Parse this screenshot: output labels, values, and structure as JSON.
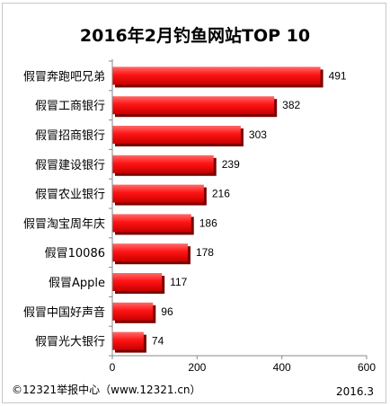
{
  "chart_data": {
    "type": "bar",
    "orientation": "horizontal",
    "title": "2016年2月钓鱼网站TOP 10",
    "categories": [
      "假冒奔跑吧兄弟",
      "假冒工商银行",
      "假冒招商银行",
      "假冒建设银行",
      "假冒农业银行",
      "假冒淘宝周年庆",
      "假冒10086",
      "假冒Apple",
      "假冒中国好声音",
      "假冒光大银行"
    ],
    "values": [
      491,
      382,
      303,
      239,
      216,
      186,
      178,
      117,
      96,
      74
    ],
    "xlabel": "",
    "ylabel": "",
    "xlim": [
      0,
      600
    ],
    "xticks": [
      "0",
      "200",
      "400",
      "600"
    ],
    "grid": false,
    "legend": "none",
    "bar_color": "#ff1a1a",
    "bar_shadow_color": "#7a0000"
  },
  "footer": {
    "source": "©12321举报中心（www.12321.cn）",
    "date": "2016.3"
  }
}
